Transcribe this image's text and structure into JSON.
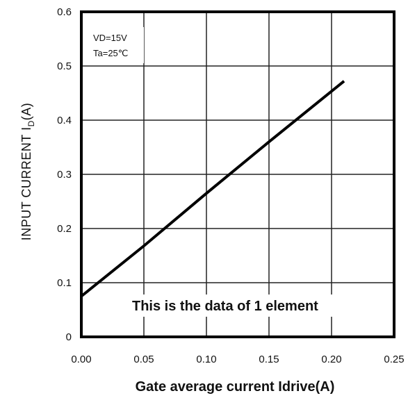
{
  "chart_data": {
    "type": "line",
    "xlabel": "Gate average current Idrive(A)",
    "ylabel": "INPUT CURRENT ID(A)",
    "ylabel_main": "INPUT CURRENT I",
    "ylabel_sub": "D",
    "ylabel_unit": "(A)",
    "xlim": [
      0,
      0.25
    ],
    "ylim": [
      0,
      0.6
    ],
    "x_ticks": [
      "0.00",
      "0.05",
      "0.10",
      "0.15",
      "0.20",
      "0.25"
    ],
    "y_ticks": [
      "0",
      "0.1",
      "0.2",
      "0.3",
      "0.4",
      "0.5",
      "0.6"
    ],
    "grid": true,
    "conditions": [
      "VD=15V",
      "Ta=25℃"
    ],
    "annotation": "This is the data of 1 element",
    "series": [
      {
        "x": [
          0.0,
          0.05,
          0.1,
          0.15,
          0.21
        ],
        "y": [
          0.075,
          0.168,
          0.265,
          0.36,
          0.472
        ]
      }
    ]
  }
}
